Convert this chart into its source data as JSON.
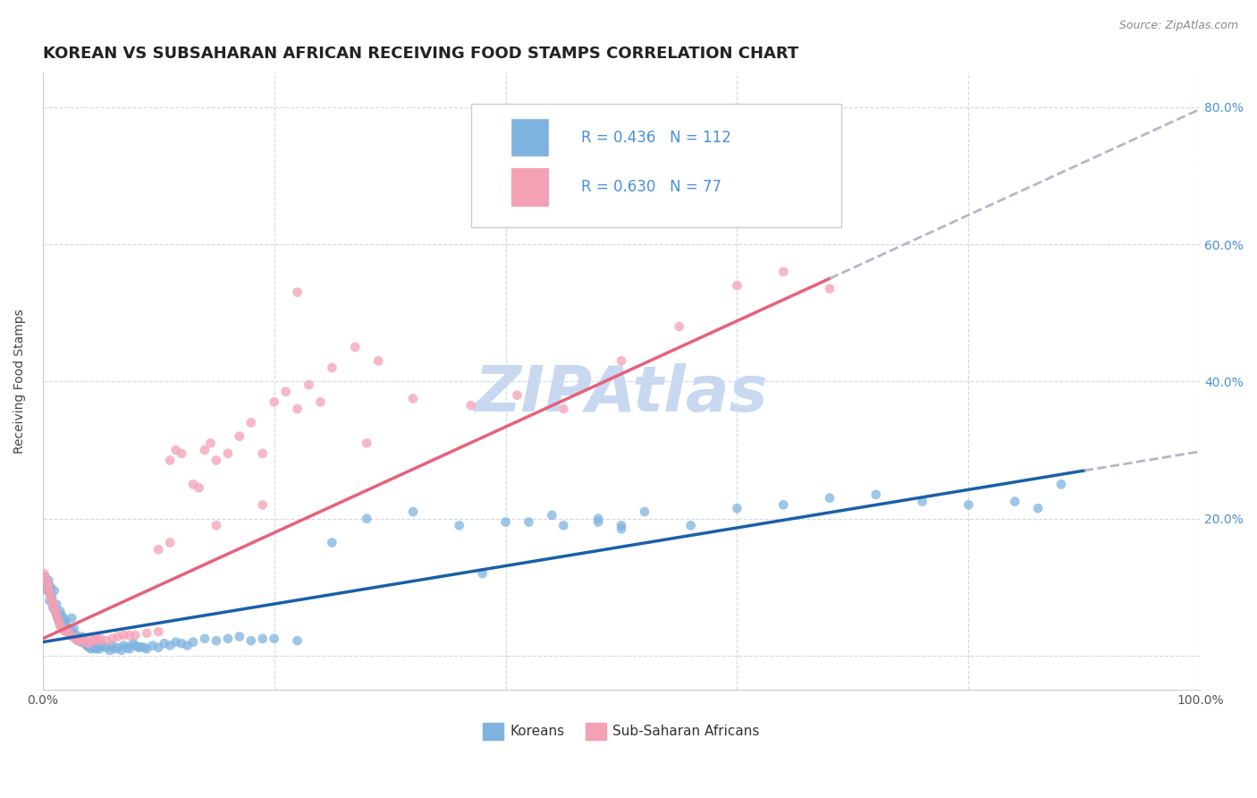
{
  "title": "KOREAN VS SUBSAHARAN AFRICAN RECEIVING FOOD STAMPS CORRELATION CHART",
  "source": "Source: ZipAtlas.com",
  "ylabel": "Receiving Food Stamps",
  "xlim": [
    0,
    1.0
  ],
  "ylim": [
    -0.05,
    0.85
  ],
  "korean_R": 0.436,
  "korean_N": 112,
  "subsaharan_R": 0.63,
  "subsaharan_N": 77,
  "korean_color": "#7eb3e0",
  "subsaharan_color": "#f4a0b5",
  "korean_line_color": "#1a5fa8",
  "subsaharan_line_color": "#e8607a",
  "trend_extend_color": "#b0b8c8",
  "background_color": "#ffffff",
  "grid_color": "#d0d8e8",
  "watermark_color": "#c8d8f0",
  "watermark_text": "ZIPAtlas",
  "title_fontsize": 13,
  "label_fontsize": 10,
  "tick_fontsize": 10,
  "legend_fontsize": 12,
  "right_ytick_color": "#4a90d9",
  "legend_labels": [
    "Koreans",
    "Sub-Saharan Africans"
  ],
  "korean_line_x0": 0.0,
  "korean_line_y0": 0.02,
  "korean_line_x1": 0.9,
  "korean_line_y1": 0.27,
  "subsaharan_line_x0": 0.0,
  "subsaharan_line_y0": 0.025,
  "subsaharan_line_x1": 0.68,
  "subsaharan_line_y1": 0.55,
  "korean_scatter_x": [
    0.002,
    0.003,
    0.004,
    0.005,
    0.005,
    0.006,
    0.007,
    0.007,
    0.008,
    0.009,
    0.01,
    0.01,
    0.011,
    0.012,
    0.012,
    0.013,
    0.014,
    0.015,
    0.015,
    0.016,
    0.017,
    0.018,
    0.019,
    0.02,
    0.02,
    0.021,
    0.022,
    0.023,
    0.024,
    0.025,
    0.025,
    0.026,
    0.027,
    0.028,
    0.029,
    0.03,
    0.031,
    0.032,
    0.033,
    0.034,
    0.035,
    0.036,
    0.037,
    0.038,
    0.039,
    0.04,
    0.041,
    0.042,
    0.043,
    0.044,
    0.045,
    0.046,
    0.047,
    0.048,
    0.049,
    0.05,
    0.052,
    0.055,
    0.058,
    0.06,
    0.062,
    0.065,
    0.068,
    0.07,
    0.073,
    0.075,
    0.078,
    0.08,
    0.083,
    0.085,
    0.088,
    0.09,
    0.095,
    0.1,
    0.105,
    0.11,
    0.115,
    0.12,
    0.125,
    0.13,
    0.14,
    0.15,
    0.16,
    0.17,
    0.18,
    0.19,
    0.2,
    0.22,
    0.25,
    0.28,
    0.32,
    0.36,
    0.4,
    0.44,
    0.48,
    0.52,
    0.56,
    0.6,
    0.64,
    0.68,
    0.72,
    0.76,
    0.8,
    0.84,
    0.86,
    0.88,
    0.5,
    0.48,
    0.5,
    0.42,
    0.45,
    0.38
  ],
  "korean_scatter_y": [
    0.115,
    0.1,
    0.095,
    0.11,
    0.105,
    0.08,
    0.09,
    0.1,
    0.085,
    0.07,
    0.095,
    0.07,
    0.065,
    0.06,
    0.075,
    0.055,
    0.05,
    0.065,
    0.045,
    0.06,
    0.05,
    0.055,
    0.045,
    0.05,
    0.04,
    0.042,
    0.038,
    0.035,
    0.038,
    0.055,
    0.035,
    0.032,
    0.04,
    0.028,
    0.03,
    0.025,
    0.022,
    0.025,
    0.02,
    0.028,
    0.022,
    0.018,
    0.02,
    0.015,
    0.018,
    0.012,
    0.015,
    0.01,
    0.013,
    0.015,
    0.012,
    0.01,
    0.015,
    0.012,
    0.01,
    0.018,
    0.015,
    0.012,
    0.008,
    0.015,
    0.01,
    0.012,
    0.008,
    0.015,
    0.012,
    0.01,
    0.018,
    0.015,
    0.012,
    0.013,
    0.012,
    0.01,
    0.015,
    0.012,
    0.018,
    0.015,
    0.02,
    0.018,
    0.015,
    0.02,
    0.025,
    0.022,
    0.025,
    0.028,
    0.022,
    0.025,
    0.025,
    0.022,
    0.165,
    0.2,
    0.21,
    0.19,
    0.195,
    0.205,
    0.195,
    0.21,
    0.19,
    0.215,
    0.22,
    0.23,
    0.235,
    0.225,
    0.22,
    0.225,
    0.215,
    0.25,
    0.19,
    0.2,
    0.185,
    0.195,
    0.19,
    0.12
  ],
  "subsaharan_scatter_x": [
    0.001,
    0.002,
    0.003,
    0.004,
    0.005,
    0.005,
    0.006,
    0.007,
    0.008,
    0.009,
    0.01,
    0.011,
    0.012,
    0.013,
    0.014,
    0.015,
    0.016,
    0.018,
    0.02,
    0.022,
    0.024,
    0.026,
    0.028,
    0.03,
    0.032,
    0.034,
    0.036,
    0.038,
    0.04,
    0.042,
    0.044,
    0.046,
    0.048,
    0.05,
    0.055,
    0.06,
    0.065,
    0.07,
    0.075,
    0.08,
    0.09,
    0.1,
    0.11,
    0.115,
    0.12,
    0.13,
    0.135,
    0.14,
    0.145,
    0.15,
    0.16,
    0.17,
    0.18,
    0.19,
    0.2,
    0.21,
    0.22,
    0.23,
    0.24,
    0.25,
    0.27,
    0.29,
    0.1,
    0.11,
    0.15,
    0.19,
    0.28,
    0.32,
    0.37,
    0.41,
    0.45,
    0.5,
    0.55,
    0.6,
    0.64,
    0.68,
    0.22
  ],
  "subsaharan_scatter_y": [
    0.12,
    0.115,
    0.11,
    0.105,
    0.1,
    0.095,
    0.09,
    0.085,
    0.08,
    0.075,
    0.07,
    0.065,
    0.06,
    0.055,
    0.05,
    0.045,
    0.04,
    0.038,
    0.035,
    0.035,
    0.03,
    0.028,
    0.025,
    0.022,
    0.025,
    0.02,
    0.025,
    0.02,
    0.018,
    0.025,
    0.022,
    0.025,
    0.022,
    0.025,
    0.022,
    0.025,
    0.028,
    0.03,
    0.03,
    0.03,
    0.033,
    0.035,
    0.285,
    0.3,
    0.295,
    0.25,
    0.245,
    0.3,
    0.31,
    0.285,
    0.295,
    0.32,
    0.34,
    0.295,
    0.37,
    0.385,
    0.36,
    0.395,
    0.37,
    0.42,
    0.45,
    0.43,
    0.155,
    0.165,
    0.19,
    0.22,
    0.31,
    0.375,
    0.365,
    0.38,
    0.36,
    0.43,
    0.48,
    0.54,
    0.56,
    0.535,
    0.53
  ]
}
